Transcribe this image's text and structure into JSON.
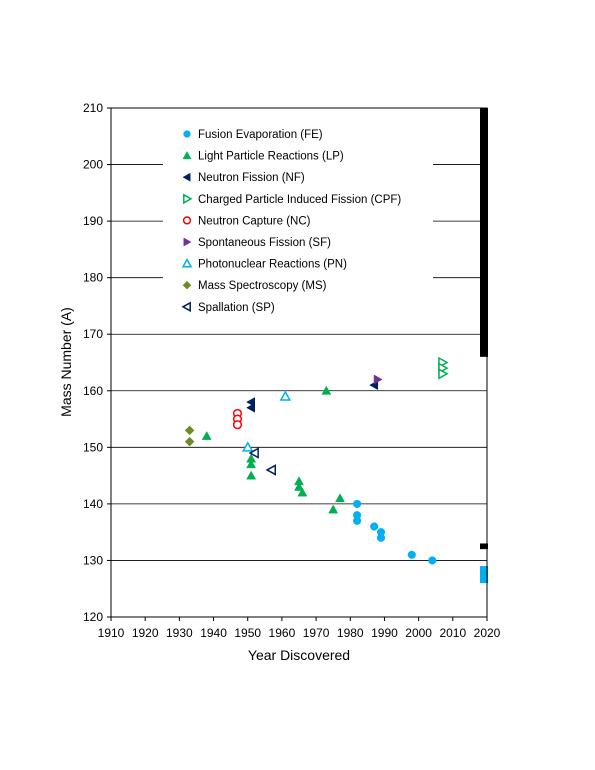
{
  "chart_data": {
    "type": "scatter",
    "xlabel": "Year Discovered",
    "ylabel": "Mass Number (A)",
    "xlim": [
      1910,
      2020
    ],
    "ylim": [
      120,
      210
    ],
    "x_ticks": [
      "1910",
      "1920",
      "1930",
      "1940",
      "1950",
      "1960",
      "1970",
      "1980",
      "1990",
      "2000",
      "2010",
      "2020"
    ],
    "y_ticks": [
      "120",
      "130",
      "140",
      "150",
      "160",
      "170",
      "180",
      "190",
      "200",
      "210"
    ],
    "grid": "horizontal",
    "legend_position": "top-left inside plot",
    "series": [
      {
        "name": "Fusion Evaporation (FE)",
        "marker": "circle",
        "filled": true,
        "color": "#00B0F0",
        "points": [
          [
            1982,
            140
          ],
          [
            1982,
            138
          ],
          [
            1982,
            137
          ],
          [
            1987,
            136
          ],
          [
            1989,
            135
          ],
          [
            1989,
            134
          ],
          [
            1998,
            131
          ],
          [
            2004,
            130
          ]
        ]
      },
      {
        "name": "Light Particle Reactions (LP)",
        "marker": "triangle-up",
        "filled": true,
        "color": "#00B050",
        "points": [
          [
            1938,
            152
          ],
          [
            1951,
            148
          ],
          [
            1951,
            147
          ],
          [
            1951,
            145
          ],
          [
            1965,
            144
          ],
          [
            1965,
            143
          ],
          [
            1966,
            142
          ],
          [
            1975,
            139
          ],
          [
            1977,
            141
          ],
          [
            1973,
            160
          ]
        ]
      },
      {
        "name": "Neutron Fission (NF)",
        "marker": "triangle-left",
        "filled": true,
        "color": "#002060",
        "points": [
          [
            1951,
            158
          ],
          [
            1951,
            157
          ],
          [
            1987,
            161
          ]
        ]
      },
      {
        "name": "Charged Particle Induced Fission (CPF)",
        "marker": "triangle-right",
        "filled": false,
        "color": "#00B050",
        "points": [
          [
            2007,
            165
          ],
          [
            2007,
            164
          ],
          [
            2007,
            163
          ]
        ]
      },
      {
        "name": "Neutron Capture (NC)",
        "marker": "circle",
        "filled": false,
        "color": "#FF0000",
        "points": [
          [
            1947,
            156
          ],
          [
            1947,
            155
          ],
          [
            1947,
            154
          ]
        ]
      },
      {
        "name": "Spontaneous Fission (SF)",
        "marker": "triangle-right",
        "filled": true,
        "color": "#7030A0",
        "points": [
          [
            1988,
            162
          ]
        ]
      },
      {
        "name": "Photonuclear Reactions (PN)",
        "marker": "triangle-up",
        "filled": false,
        "color": "#00B0F0",
        "points": [
          [
            1950,
            150
          ],
          [
            1961,
            159
          ]
        ]
      },
      {
        "name": "Mass Spectroscopy (MS)",
        "marker": "diamond",
        "filled": true,
        "color": "#6B8E23",
        "points": [
          [
            1933,
            153
          ],
          [
            1933,
            151
          ]
        ]
      },
      {
        "name": "Spallation (SP)",
        "marker": "triangle-left",
        "filled": false,
        "color": "#002060",
        "points": [
          [
            1952,
            149
          ],
          [
            1957,
            146
          ]
        ]
      }
    ],
    "edge_bars": [
      {
        "color": "#000000",
        "range": [
          166,
          210
        ]
      },
      {
        "color": "#000000",
        "range": [
          132,
          133
        ]
      },
      {
        "color": "#00B0F0",
        "range": [
          126,
          129
        ]
      }
    ]
  }
}
